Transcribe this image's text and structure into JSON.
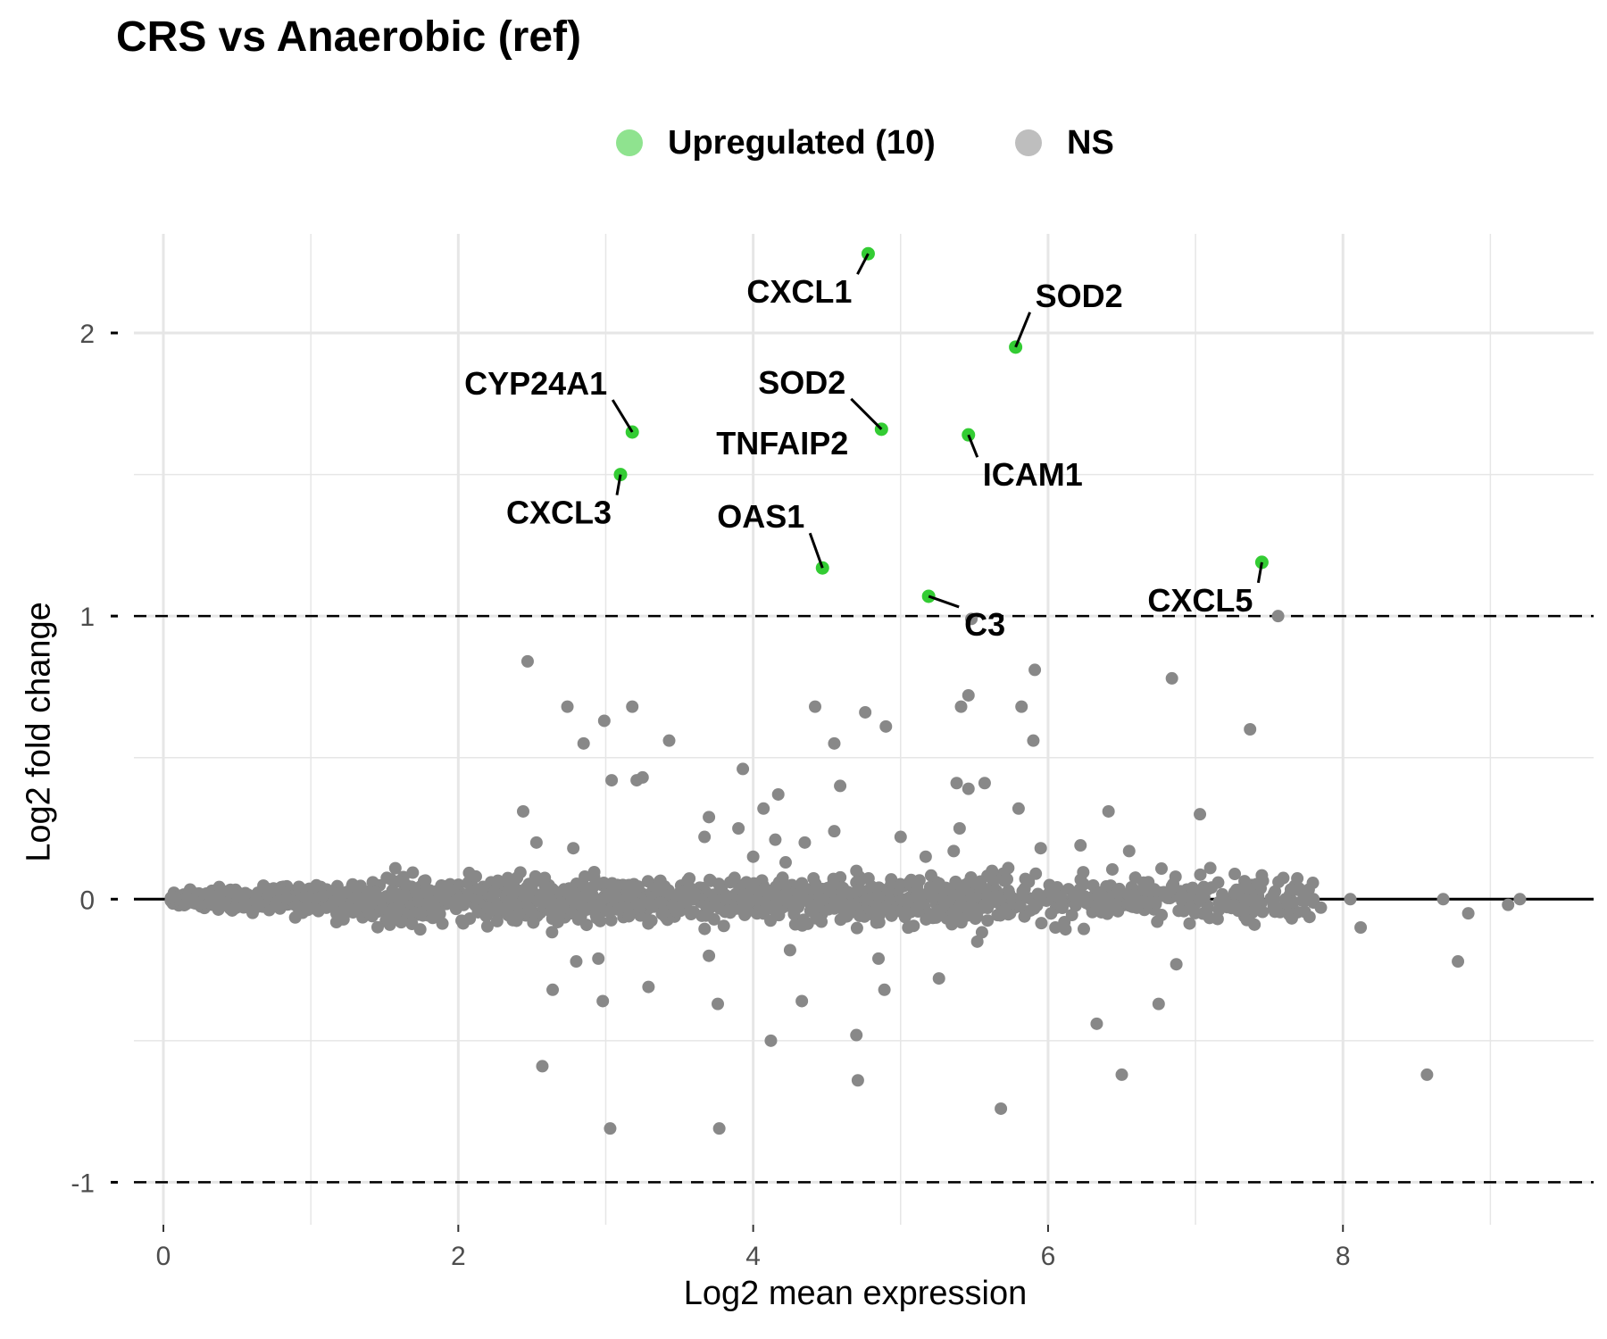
{
  "chart_data": {
    "type": "scatter",
    "title": "CRS vs Anaerobic (ref)",
    "xlabel": "Log2 mean expression",
    "ylabel": "Log2 fold change",
    "xlim": [
      -0.2,
      9.7
    ],
    "ylim": [
      -1.15,
      2.35
    ],
    "xticks": [
      0,
      2,
      4,
      6,
      8
    ],
    "yticks": [
      -1,
      0,
      1,
      2
    ],
    "xtick_labels": [
      "0",
      "2",
      "4",
      "6",
      "8"
    ],
    "ytick_labels": [
      "-1",
      "0",
      "1",
      "2"
    ],
    "grid": true,
    "legend_position": "top",
    "hlines": [
      {
        "y": 0,
        "style": "solid"
      },
      {
        "y": 1,
        "style": "dashed"
      },
      {
        "y": -1,
        "style": "dashed"
      }
    ],
    "series": [
      {
        "name": "Upregulated (10)",
        "color": "#33cc33",
        "points": [
          {
            "x": 4.78,
            "y": 2.28,
            "label": "CXCL1"
          },
          {
            "x": 5.78,
            "y": 1.95,
            "label": "SOD2"
          },
          {
            "x": 4.87,
            "y": 1.66,
            "label": "SOD2"
          },
          {
            "x": 3.18,
            "y": 1.65,
            "label": "CYP24A1"
          },
          {
            "x": 5.46,
            "y": 1.64,
            "label": "ICAM1"
          },
          {
            "x": 3.1,
            "y": 1.5,
            "label": "CXCL3"
          },
          {
            "x": 4.47,
            "y": 1.17,
            "label": "OAS1"
          },
          {
            "x": 7.45,
            "y": 1.19,
            "label": "CXCL5"
          },
          {
            "x": 5.19,
            "y": 1.07,
            "label": "C3"
          },
          {
            "x": 4.87,
            "y": 1.66,
            "label": "TNFAIP2"
          }
        ]
      },
      {
        "name": "NS",
        "color": "#888888",
        "points": [
          {
            "x": 2.47,
            "y": 0.84
          },
          {
            "x": 2.74,
            "y": 0.68
          },
          {
            "x": 3.18,
            "y": 0.68
          },
          {
            "x": 2.99,
            "y": 0.63
          },
          {
            "x": 2.85,
            "y": 0.55
          },
          {
            "x": 3.43,
            "y": 0.56
          },
          {
            "x": 3.04,
            "y": 0.42
          },
          {
            "x": 3.21,
            "y": 0.42
          },
          {
            "x": 3.25,
            "y": 0.43
          },
          {
            "x": 2.44,
            "y": 0.31
          },
          {
            "x": 2.53,
            "y": 0.2
          },
          {
            "x": 2.78,
            "y": 0.18
          },
          {
            "x": 4.42,
            "y": 0.68
          },
          {
            "x": 4.76,
            "y": 0.66
          },
          {
            "x": 4.9,
            "y": 0.61
          },
          {
            "x": 4.55,
            "y": 0.55
          },
          {
            "x": 3.93,
            "y": 0.46
          },
          {
            "x": 4.59,
            "y": 0.4
          },
          {
            "x": 4.17,
            "y": 0.37
          },
          {
            "x": 4.07,
            "y": 0.32
          },
          {
            "x": 3.7,
            "y": 0.29
          },
          {
            "x": 3.9,
            "y": 0.25
          },
          {
            "x": 4.55,
            "y": 0.24
          },
          {
            "x": 3.67,
            "y": 0.22
          },
          {
            "x": 4.15,
            "y": 0.21
          },
          {
            "x": 4.35,
            "y": 0.2
          },
          {
            "x": 4.0,
            "y": 0.15
          },
          {
            "x": 4.22,
            "y": 0.13
          },
          {
            "x": 5.48,
            "y": 0.99
          },
          {
            "x": 7.56,
            "y": 1.0
          },
          {
            "x": 5.91,
            "y": 0.81
          },
          {
            "x": 6.84,
            "y": 0.78
          },
          {
            "x": 5.46,
            "y": 0.72
          },
          {
            "x": 5.41,
            "y": 0.68
          },
          {
            "x": 5.82,
            "y": 0.68
          },
          {
            "x": 5.9,
            "y": 0.56
          },
          {
            "x": 7.37,
            "y": 0.6
          },
          {
            "x": 5.38,
            "y": 0.41
          },
          {
            "x": 5.46,
            "y": 0.39
          },
          {
            "x": 5.57,
            "y": 0.41
          },
          {
            "x": 5.8,
            "y": 0.32
          },
          {
            "x": 6.41,
            "y": 0.31
          },
          {
            "x": 7.03,
            "y": 0.3
          },
          {
            "x": 5.0,
            "y": 0.22
          },
          {
            "x": 5.4,
            "y": 0.25
          },
          {
            "x": 5.36,
            "y": 0.17
          },
          {
            "x": 5.17,
            "y": 0.15
          },
          {
            "x": 5.95,
            "y": 0.18
          },
          {
            "x": 6.22,
            "y": 0.19
          },
          {
            "x": 6.55,
            "y": 0.17
          },
          {
            "x": 7.1,
            "y": 0.11
          },
          {
            "x": 5.62,
            "y": 0.1
          },
          {
            "x": 4.7,
            "y": 0.1
          },
          {
            "x": 5.73,
            "y": 0.11
          },
          {
            "x": 2.64,
            "y": -0.32
          },
          {
            "x": 2.98,
            "y": -0.36
          },
          {
            "x": 3.29,
            "y": -0.31
          },
          {
            "x": 2.57,
            "y": -0.59
          },
          {
            "x": 3.03,
            "y": -0.81
          },
          {
            "x": 3.77,
            "y": -0.81
          },
          {
            "x": 3.76,
            "y": -0.37
          },
          {
            "x": 4.12,
            "y": -0.5
          },
          {
            "x": 4.33,
            "y": -0.36
          },
          {
            "x": 4.7,
            "y": -0.48
          },
          {
            "x": 4.71,
            "y": -0.64
          },
          {
            "x": 4.89,
            "y": -0.32
          },
          {
            "x": 5.26,
            "y": -0.28
          },
          {
            "x": 5.68,
            "y": -0.74
          },
          {
            "x": 6.33,
            "y": -0.44
          },
          {
            "x": 6.5,
            "y": -0.62
          },
          {
            "x": 6.75,
            "y": -0.37
          },
          {
            "x": 6.87,
            "y": -0.23
          },
          {
            "x": 8.57,
            "y": -0.62
          },
          {
            "x": 8.78,
            "y": -0.22
          },
          {
            "x": 2.8,
            "y": -0.22
          },
          {
            "x": 2.95,
            "y": -0.21
          },
          {
            "x": 3.7,
            "y": -0.2
          },
          {
            "x": 4.25,
            "y": -0.18
          },
          {
            "x": 4.85,
            "y": -0.21
          },
          {
            "x": 5.52,
            "y": -0.15
          },
          {
            "x": 6.05,
            "y": -0.1
          },
          {
            "x": 7.15,
            "y": -0.07
          },
          {
            "x": 7.85,
            "y": -0.03
          },
          {
            "x": 8.12,
            "y": -0.1
          },
          {
            "x": 8.68,
            "y": 0.0
          },
          {
            "x": 8.85,
            "y": -0.05
          },
          {
            "x": 9.2,
            "y": 0.0
          },
          {
            "x": 9.12,
            "y": -0.02
          },
          {
            "x": 7.4,
            "y": -0.09
          },
          {
            "x": 7.61,
            "y": 0.0
          },
          {
            "x": 6.68,
            "y": 0.06
          },
          {
            "x": 6.98,
            "y": 0.04
          },
          {
            "x": 7.35,
            "y": 0.04
          },
          {
            "x": 7.8,
            "y": 0.0
          },
          {
            "x": 8.05,
            "y": 0.0
          }
        ]
      }
    ]
  }
}
